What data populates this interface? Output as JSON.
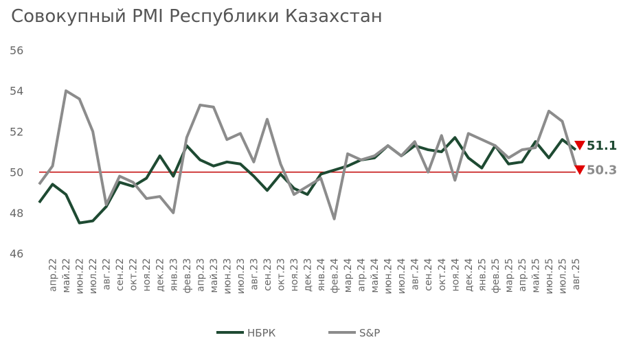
{
  "chart_data": {
    "type": "line",
    "title": "Совокупный PMI Республики Казахстан",
    "categories": [
      null,
      "апр.22",
      "май.22",
      "июн.22",
      "июл.22",
      "авг.22",
      "сен.22",
      "окт.22",
      "ноя.22",
      "дек.22",
      "янв.23",
      "фев.23",
      "апр.23",
      "май.23",
      "июн.23",
      "июл.23",
      "авг.23",
      "сен.23",
      "окт.23",
      "ноя.23",
      "дек.23",
      "янв.24",
      "фев.24",
      "мар.24",
      "апр.24",
      "май.24",
      "июн.24",
      "июл.24",
      "авг.24",
      "сен.24",
      "окт.24",
      "ноя.24",
      "дек.24",
      "янв.25",
      "фев.25",
      "мар.25",
      "апр.25",
      "май.25",
      "июн.25",
      "июл.25",
      "авг.25"
    ],
    "series": [
      {
        "name": "НБРК",
        "color": "#1e4a32",
        "values": [
          48.5,
          49.4,
          48.9,
          47.5,
          47.6,
          48.3,
          49.5,
          49.3,
          49.7,
          50.8,
          49.8,
          51.3,
          50.6,
          50.3,
          50.5,
          50.4,
          49.8,
          49.1,
          49.9,
          49.2,
          48.9,
          49.9,
          50.1,
          50.3,
          50.6,
          50.7,
          51.3,
          50.8,
          51.3,
          51.1,
          51.0,
          51.7,
          50.7,
          50.2,
          51.3,
          50.4,
          50.5,
          51.5,
          50.7,
          51.6,
          51.1
        ]
      },
      {
        "name": "S&P",
        "color": "#8c8c8c",
        "values": [
          49.4,
          50.3,
          54.0,
          53.6,
          52.0,
          48.4,
          49.8,
          49.5,
          48.7,
          48.8,
          48.0,
          51.7,
          53.3,
          53.2,
          51.6,
          51.9,
          50.5,
          52.6,
          50.4,
          48.9,
          49.3,
          49.7,
          47.7,
          50.9,
          50.6,
          50.8,
          51.3,
          50.8,
          51.5,
          50.0,
          51.8,
          49.6,
          51.9,
          51.6,
          51.3,
          50.7,
          51.1,
          51.2,
          53.0,
          52.5,
          50.3
        ]
      }
    ],
    "ylim": [
      46,
      56
    ],
    "yticks": [
      46,
      48,
      50,
      52,
      54,
      56
    ],
    "reference_line": {
      "value": 50,
      "color": "#c00000"
    },
    "legend": "bottom"
  }
}
